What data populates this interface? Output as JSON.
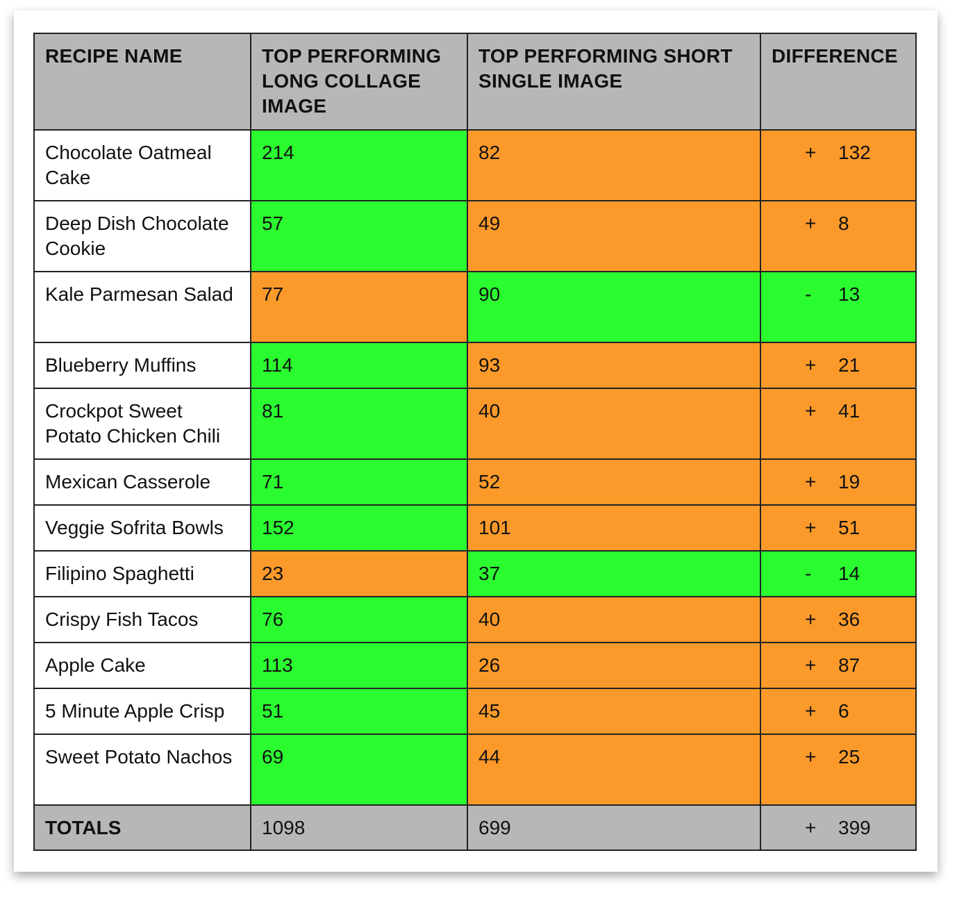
{
  "colors": {
    "better": "#2bfc30",
    "worse": "#fb9a2a",
    "header": "#b7b7b7"
  },
  "headers": [
    "RECIPE NAME",
    "TOP PERFORMING LONG COLLAGE IMAGE",
    "TOP PERFORMING SHORT SINGLE IMAGE",
    "DIFFERENCE"
  ],
  "rows": [
    {
      "name": "Chocolate Oatmeal Cake",
      "long": "214",
      "short": "82",
      "sign": "+",
      "diff": "132",
      "winner": "long"
    },
    {
      "name": "Deep Dish Chocolate Cookie",
      "long": "57",
      "short": "49",
      "sign": "+",
      "diff": "8",
      "winner": "long"
    },
    {
      "name": "Kale Parmesan Salad",
      "long": "77",
      "short": "90",
      "sign": "-",
      "diff": "13",
      "winner": "short"
    },
    {
      "name": "Blueberry Muffins",
      "long": "114",
      "short": "93",
      "sign": "+",
      "diff": "21",
      "winner": "long"
    },
    {
      "name": "Crockpot Sweet Potato Chicken Chili",
      "long": "81",
      "short": "40",
      "sign": "+",
      "diff": "41",
      "winner": "long"
    },
    {
      "name": "Mexican Casserole",
      "long": "71",
      "short": "52",
      "sign": "+",
      "diff": "19",
      "winner": "long"
    },
    {
      "name": "Veggie Sofrita Bowls",
      "long": "152",
      "short": "101",
      "sign": "+",
      "diff": "51",
      "winner": "long"
    },
    {
      "name": "Filipino Spaghetti",
      "long": "23",
      "short": "37",
      "sign": "-",
      "diff": "14",
      "winner": "short"
    },
    {
      "name": "Crispy Fish Tacos",
      "long": "76",
      "short": "40",
      "sign": "+",
      "diff": "36",
      "winner": "long"
    },
    {
      "name": "Apple Cake",
      "long": "113",
      "short": "26",
      "sign": "+",
      "diff": "87",
      "winner": "long"
    },
    {
      "name": "5 Minute Apple Crisp",
      "long": "51",
      "short": "45",
      "sign": "+",
      "diff": "6",
      "winner": "long"
    },
    {
      "name": "Sweet Potato Nachos",
      "long": "69",
      "short": "44",
      "sign": "+",
      "diff": "25",
      "winner": "long"
    }
  ],
  "totals": {
    "label": "TOTALS",
    "long": "1098",
    "short": "699",
    "sign": "+",
    "diff": "399"
  }
}
